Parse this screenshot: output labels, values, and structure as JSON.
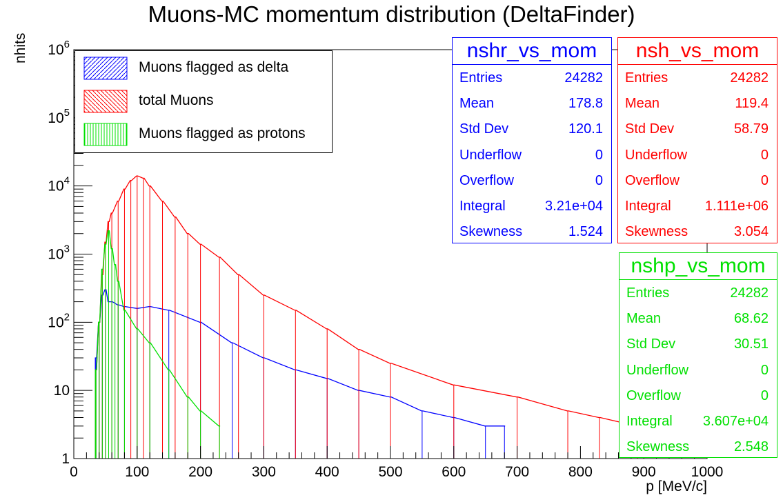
{
  "colors": {
    "delta": "#0000ff",
    "total": "#ff0000",
    "protons": "#00e000",
    "axis": "#000000"
  },
  "chart_data": {
    "type": "histogram",
    "title": "Muons-MC momentum distribution (DeltaFinder)",
    "xlabel": "p [MeV/c]",
    "ylabel": "nhits",
    "xlim": [
      0,
      1000
    ],
    "ylim": [
      1,
      1000000
    ],
    "yscale": "log",
    "x_ticks": [
      "0",
      "100",
      "200",
      "300",
      "400",
      "500",
      "600",
      "700",
      "800",
      "900",
      "1000"
    ],
    "y_ticks": [
      "1",
      "10",
      "10^2",
      "10^3",
      "10^4",
      "10^5",
      "10^6"
    ],
    "grid": false,
    "legend_position": "top-left",
    "series": [
      {
        "name": "Muons flagged as delta",
        "color": "#0000ff",
        "x": [
          35,
          40,
          45,
          50,
          55,
          60,
          70,
          80,
          100,
          120,
          150,
          200,
          250,
          300,
          350,
          400,
          450,
          500,
          550,
          600,
          650,
          680
        ],
        "y": [
          30,
          100,
          250,
          300,
          200,
          200,
          180,
          170,
          160,
          170,
          150,
          100,
          50,
          30,
          20,
          15,
          10,
          8,
          5,
          4,
          3,
          3
        ]
      },
      {
        "name": "total Muons",
        "color": "#ff0000",
        "x": [
          35,
          40,
          45,
          50,
          55,
          60,
          70,
          80,
          90,
          100,
          110,
          120,
          140,
          160,
          180,
          200,
          230,
          260,
          300,
          350,
          400,
          450,
          500,
          600,
          700,
          780,
          830,
          890
        ],
        "y": [
          20,
          100,
          500,
          1500,
          3000,
          4000,
          6000,
          9000,
          12000,
          14000,
          13000,
          10000,
          6000,
          3500,
          2000,
          1400,
          900,
          500,
          250,
          150,
          80,
          40,
          25,
          12,
          8,
          5,
          4,
          3
        ]
      },
      {
        "name": "Muons flagged as protons",
        "color": "#00e000",
        "x": [
          35,
          40,
          45,
          50,
          55,
          60,
          65,
          70,
          80,
          100,
          120,
          150,
          180,
          200,
          230
        ],
        "y": [
          20,
          100,
          600,
          1400,
          2200,
          1200,
          700,
          400,
          150,
          80,
          50,
          20,
          8,
          5,
          3
        ]
      }
    ]
  },
  "stats_boxes": [
    {
      "title": "nshr_vs_mom",
      "color": "#0000ff",
      "rows": [
        {
          "k": "Entries",
          "v": "24282"
        },
        {
          "k": "Mean",
          "v": "178.8"
        },
        {
          "k": "Std Dev",
          "v": "120.1"
        },
        {
          "k": "Underflow",
          "v": "0"
        },
        {
          "k": "Overflow",
          "v": "0"
        },
        {
          "k": "Integral",
          "v": "3.21e+04"
        },
        {
          "k": "Skewness",
          "v": "1.524"
        }
      ]
    },
    {
      "title": "nsh_vs_mom",
      "color": "#ff0000",
      "rows": [
        {
          "k": "Entries",
          "v": "24282"
        },
        {
          "k": "Mean",
          "v": "119.4"
        },
        {
          "k": "Std Dev",
          "v": "58.79"
        },
        {
          "k": "Underflow",
          "v": "0"
        },
        {
          "k": "Overflow",
          "v": "0"
        },
        {
          "k": "Integral",
          "v": "1.111e+06"
        },
        {
          "k": "Skewness",
          "v": "3.054"
        }
      ]
    },
    {
      "title": "nshp_vs_mom",
      "color": "#00e000",
      "rows": [
        {
          "k": "Entries",
          "v": "24282"
        },
        {
          "k": "Mean",
          "v": "68.62"
        },
        {
          "k": "Std Dev",
          "v": "30.51"
        },
        {
          "k": "Underflow",
          "v": "0"
        },
        {
          "k": "Overflow",
          "v": "0"
        },
        {
          "k": "Integral",
          "v": "3.607e+04"
        },
        {
          "k": "Skewness",
          "v": "2.548"
        }
      ]
    }
  ]
}
